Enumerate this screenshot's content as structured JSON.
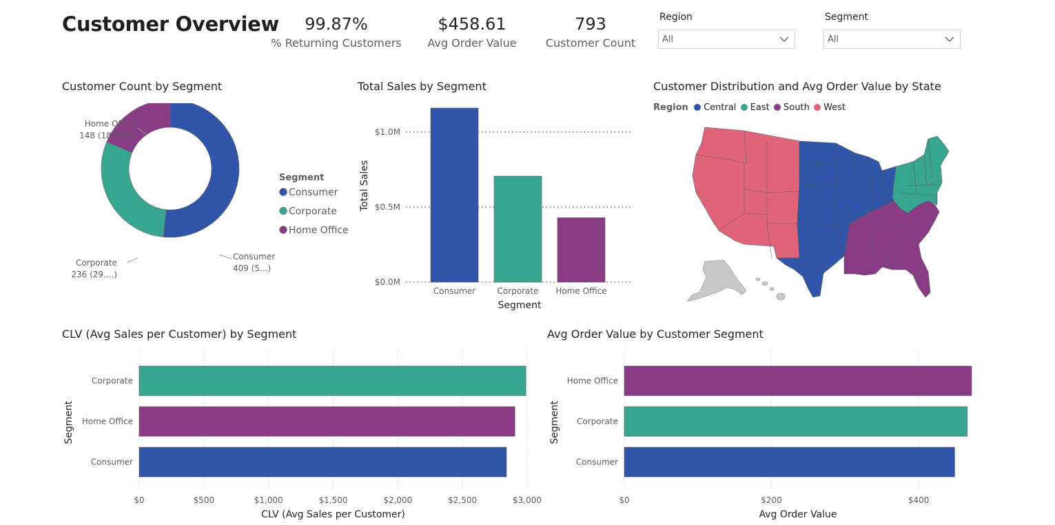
{
  "page_title": "Customer Overview",
  "kpis": [
    {
      "value": "99.87%",
      "label": "% Returning Customers"
    },
    {
      "value": "$458.61",
      "label": "Avg Order Value"
    },
    {
      "value": "793",
      "label": "Customer Count"
    }
  ],
  "slicers": {
    "region": {
      "title": "Region",
      "value": "All"
    },
    "segment": {
      "title": "Segment",
      "value": "All"
    }
  },
  "colors": {
    "consumer": "#3155a8",
    "corporate": "#37a590",
    "home_office": "#8a3b86",
    "west": "#df6479",
    "east": "#37a590",
    "south": "#8a3b86",
    "central": "#3155a8",
    "other": "#c8c8c8"
  },
  "map": {
    "title": "Customer Distribution and Avg Order Value by State",
    "legend_title": "Region",
    "legend": [
      {
        "label": "Central",
        "color": "#3155a8"
      },
      {
        "label": "East",
        "color": "#37a590"
      },
      {
        "label": "South",
        "color": "#8a3b86"
      },
      {
        "label": "West",
        "color": "#df6479"
      }
    ]
  },
  "chart_data": [
    {
      "type": "pie",
      "variant": "donut",
      "title": "Customer Count by Segment",
      "legend_title": "Segment",
      "legend_position": "right",
      "slices": [
        {
          "label": "Consumer",
          "value": 409,
          "data_label_name": "Consumer",
          "data_label_value": "409 (5...)"
        },
        {
          "label": "Corporate",
          "value": 236,
          "data_label_name": "Corporate",
          "data_label_value": "236 (29....)"
        },
        {
          "label": "Home Office",
          "value": 148,
          "data_label_name": "Home Office",
          "data_label_value": "148 (18.66%)"
        }
      ]
    },
    {
      "type": "bar",
      "orientation": "vertical",
      "title": "Total Sales by Segment",
      "xlabel": "Segment",
      "ylabel": "Total Sales",
      "categories": [
        "Consumer",
        "Corporate",
        "Home Office"
      ],
      "values": [
        1160000,
        706000,
        429000
      ],
      "ylim": [
        0,
        1160000
      ],
      "yticks": [
        0,
        500000,
        1000000
      ],
      "ytick_labels": [
        "$0.0M",
        "$0.5M",
        "$1.0M"
      ],
      "grid": true
    },
    {
      "type": "bar",
      "orientation": "horizontal",
      "title": "CLV (Avg Sales per Customer) by Segment",
      "xlabel": "CLV (Avg Sales per Customer)",
      "ylabel": "Segment",
      "categories": [
        "Corporate",
        "Home Office",
        "Consumer"
      ],
      "values": [
        2990,
        2905,
        2840
      ],
      "xlim": [
        0,
        3000
      ],
      "xticks": [
        0,
        500,
        1000,
        1500,
        2000,
        2500,
        3000
      ],
      "xtick_labels": [
        "$0",
        "$500",
        "$1,000",
        "$1,500",
        "$2,000",
        "$2,500",
        "$3,000"
      ],
      "grid": true
    },
    {
      "type": "bar",
      "orientation": "horizontal",
      "title": "Avg Order Value by Customer Segment",
      "xlabel": "Avg Order Value",
      "ylabel": "Segment",
      "categories": [
        "Home Office",
        "Corporate",
        "Consumer"
      ],
      "values": [
        472,
        466,
        449
      ],
      "xlim": [
        0,
        472
      ],
      "xticks": [
        0,
        200,
        400
      ],
      "xtick_labels": [
        "$0",
        "$200",
        "$400"
      ],
      "grid": true
    }
  ]
}
